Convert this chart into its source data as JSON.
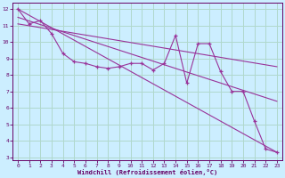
{
  "xlabel": "Windchill (Refroidissement éolien,°C)",
  "background_color": "#cceeff",
  "line_color": "#993399",
  "grid_color": "#b0d8cc",
  "xlim": [
    -0.5,
    23.5
  ],
  "ylim": [
    2.8,
    12.4
  ],
  "yticks": [
    3,
    4,
    5,
    6,
    7,
    8,
    9,
    10,
    11,
    12
  ],
  "xticks": [
    0,
    1,
    2,
    3,
    4,
    5,
    6,
    7,
    8,
    9,
    10,
    11,
    12,
    13,
    14,
    15,
    16,
    17,
    18,
    19,
    20,
    21,
    22,
    23
  ],
  "series1_x": [
    0,
    1,
    2,
    3,
    4,
    5,
    6,
    7,
    8,
    9,
    10,
    11,
    12,
    13,
    14,
    15,
    16,
    17,
    18,
    19,
    20,
    21,
    22,
    23
  ],
  "series1_y": [
    12.0,
    11.1,
    11.3,
    10.5,
    9.3,
    8.8,
    8.7,
    8.5,
    8.4,
    8.5,
    8.7,
    8.7,
    8.3,
    8.7,
    10.4,
    7.5,
    9.9,
    9.9,
    8.2,
    7.0,
    7.0,
    5.2,
    3.5,
    3.3
  ],
  "series2_x": [
    0,
    23
  ],
  "series2_y": [
    12.0,
    3.3
  ],
  "series3_x": [
    0,
    23
  ],
  "series3_y": [
    11.1,
    8.5
  ],
  "series4_x": [
    0,
    23
  ],
  "series4_y": [
    11.5,
    6.4
  ]
}
